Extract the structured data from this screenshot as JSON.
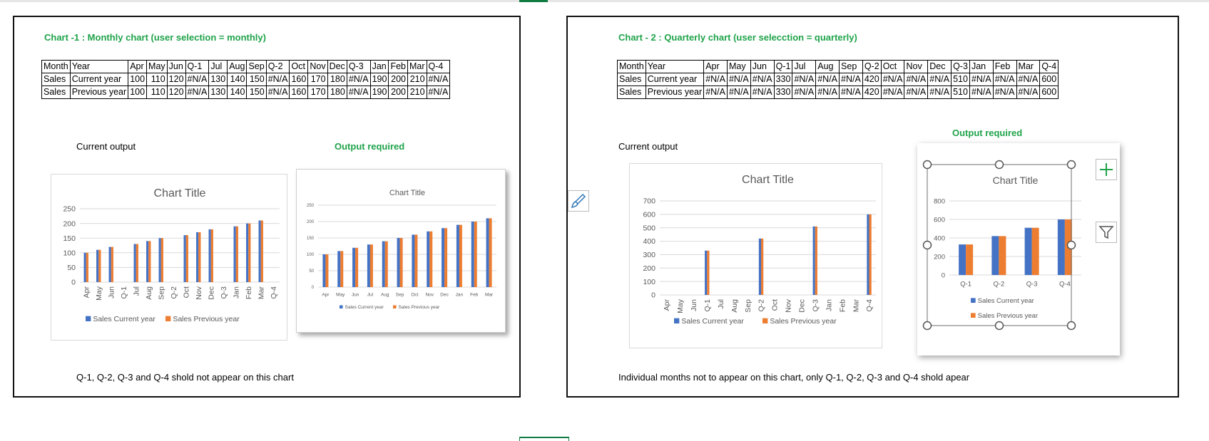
{
  "left": {
    "title": "Chart -1 : Monthly chart (user selection = monthly)",
    "table": {
      "header": [
        "Month",
        "Year",
        "Apr",
        "May",
        "Jun",
        "Q-1",
        "Jul",
        "Aug",
        "Sep",
        "Q-2",
        "Oct",
        "Nov",
        "Dec",
        "Q-3",
        "Jan",
        "Feb",
        "Mar",
        "Q-4"
      ],
      "rows": [
        [
          "Sales",
          "Current year",
          "100",
          "110",
          "120",
          "#N/A",
          "130",
          "140",
          "150",
          "#N/A",
          "160",
          "170",
          "180",
          "#N/A",
          "190",
          "200",
          "210",
          "#N/A"
        ],
        [
          "Sales",
          "Previous year",
          "100",
          "110",
          "120",
          "#N/A",
          "130",
          "140",
          "150",
          "#N/A",
          "160",
          "170",
          "180",
          "#N/A",
          "190",
          "200",
          "210",
          "#N/A"
        ]
      ]
    },
    "current_label": "Current output",
    "required_label": "Output required",
    "note": "Q-1, Q-2, Q-3 and Q-4 shold not appear on this chart"
  },
  "right": {
    "title": "Chart - 2 : Quarterly chart (user selecction = quarterly)",
    "table": {
      "header": [
        "Month",
        "Year",
        "Apr",
        "May",
        "Jun",
        "Q-1",
        "Jul",
        "Aug",
        "Sep",
        "Q-2",
        "Oct",
        "Nov",
        "Dec",
        "Q-3",
        "Jan",
        "Feb",
        "Mar",
        "Q-4"
      ],
      "rows": [
        [
          "Sales",
          "Current year",
          "#N/A",
          "#N/A",
          "#N/A",
          "330",
          "#N/A",
          "#N/A",
          "#N/A",
          "420",
          "#N/A",
          "#N/A",
          "#N/A",
          "510",
          "#N/A",
          "#N/A",
          "#N/A",
          "600"
        ],
        [
          "Sales",
          "Previous year",
          "#N/A",
          "#N/A",
          "#N/A",
          "330",
          "#N/A",
          "#N/A",
          "#N/A",
          "420",
          "#N/A",
          "#N/A",
          "#N/A",
          "510",
          "#N/A",
          "#N/A",
          "#N/A",
          "600"
        ]
      ]
    },
    "current_label": "Current output",
    "required_label": "Output required",
    "note": "Individual months not to appear on this chart, only Q-1, Q-2, Q-3 and Q-4 shold apear"
  },
  "colors": {
    "series1": "#4472c4",
    "series2": "#ed7d31",
    "heading_green": "#1fa34a",
    "gridline": "#d9d9d9"
  },
  "icons": {
    "add": "plus-icon",
    "style": "brush-icon",
    "filter": "filter-icon"
  },
  "chart_data": [
    {
      "id": "c1cur",
      "type": "bar",
      "title": "Chart Title",
      "categories": [
        "Apr",
        "May",
        "Jun",
        "Q-1",
        "Jul",
        "Aug",
        "Sep",
        "Q-2",
        "Oct",
        "Nov",
        "Dec",
        "Q-3",
        "Jan",
        "Feb",
        "Mar",
        "Q-4"
      ],
      "series": [
        {
          "name": "Sales Current year",
          "values": [
            100,
            110,
            120,
            null,
            130,
            140,
            150,
            null,
            160,
            170,
            180,
            null,
            190,
            200,
            210,
            null
          ]
        },
        {
          "name": "Sales Previous year",
          "values": [
            100,
            110,
            120,
            null,
            130,
            140,
            150,
            null,
            160,
            170,
            180,
            null,
            190,
            200,
            210,
            null
          ]
        }
      ],
      "ylim": [
        0,
        250
      ],
      "yticks": [
        0,
        50,
        100,
        150,
        200,
        250
      ],
      "grid": true,
      "legend": "bottom",
      "rotated_labels": true
    },
    {
      "id": "c1req",
      "type": "bar",
      "title": "Chart Title",
      "categories": [
        "Apr",
        "May",
        "Jun",
        "Jul",
        "Aug",
        "Sep",
        "Oct",
        "Nov",
        "Dec",
        "Jan",
        "Feb",
        "Mar"
      ],
      "series": [
        {
          "name": "Sales Current year",
          "values": [
            100,
            110,
            120,
            130,
            140,
            150,
            160,
            170,
            180,
            190,
            200,
            210
          ]
        },
        {
          "name": "Sales Previous year",
          "values": [
            100,
            110,
            120,
            130,
            140,
            150,
            160,
            170,
            180,
            190,
            200,
            210
          ]
        }
      ],
      "ylim": [
        0,
        250
      ],
      "yticks": [
        0,
        50,
        100,
        150,
        200,
        250
      ],
      "grid": true,
      "legend": "bottom",
      "rotated_labels": false
    },
    {
      "id": "c2cur",
      "type": "bar",
      "title": "Chart Title",
      "categories": [
        "Apr",
        "May",
        "Jun",
        "Q-1",
        "Jul",
        "Aug",
        "Sep",
        "Q-2",
        "Oct",
        "Nov",
        "Dec",
        "Q-3",
        "Jan",
        "Feb",
        "Mar",
        "Q-4"
      ],
      "series": [
        {
          "name": "Sales Current year",
          "values": [
            null,
            null,
            null,
            330,
            null,
            null,
            null,
            420,
            null,
            null,
            null,
            510,
            null,
            null,
            null,
            600
          ]
        },
        {
          "name": "Sales Previous year",
          "values": [
            null,
            null,
            null,
            330,
            null,
            null,
            null,
            420,
            null,
            null,
            null,
            510,
            null,
            null,
            null,
            600
          ]
        }
      ],
      "ylim": [
        0,
        700
      ],
      "yticks": [
        0,
        100,
        200,
        300,
        400,
        500,
        600,
        700
      ],
      "grid": true,
      "legend": "bottom",
      "rotated_labels": true
    },
    {
      "id": "c2req",
      "type": "bar",
      "title": "Chart Title",
      "categories": [
        "Q-1",
        "Q-2",
        "Q-3",
        "Q-4"
      ],
      "series": [
        {
          "name": "Sales Current year",
          "values": [
            330,
            420,
            510,
            600
          ]
        },
        {
          "name": "Sales Previous year",
          "values": [
            330,
            420,
            510,
            600
          ]
        }
      ],
      "ylim": [
        0,
        800
      ],
      "yticks": [
        0,
        200,
        400,
        600,
        800
      ],
      "grid": true,
      "legend": "bottom-stacked",
      "rotated_labels": false
    }
  ]
}
